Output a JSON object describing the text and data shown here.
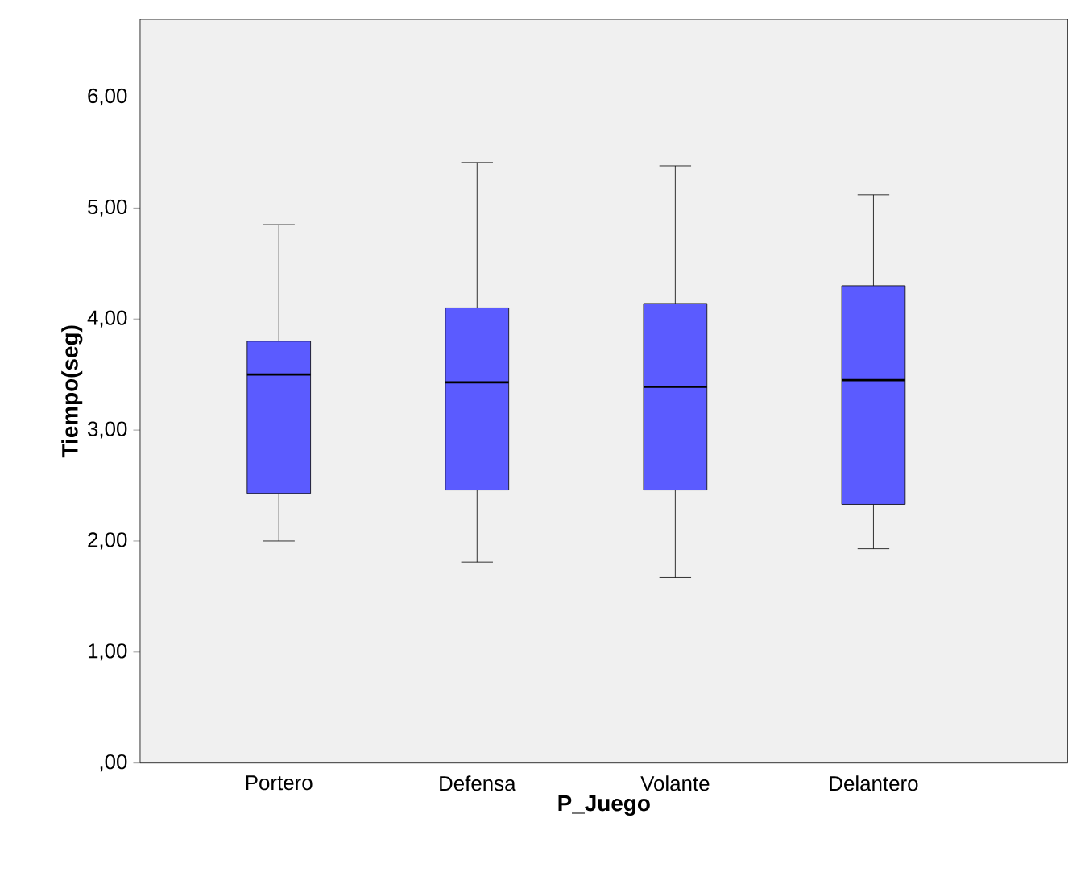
{
  "chart_data": {
    "type": "box",
    "xlabel": "P_Juego",
    "ylabel": "Tiempo(seg)",
    "categories": [
      "Portero",
      "Defensa",
      "Volante",
      "Delantero"
    ],
    "color": "#5b5bff",
    "boxes": [
      {
        "low": 2.0,
        "q1": 2.43,
        "median": 3.5,
        "q3": 3.8,
        "high": 4.85
      },
      {
        "low": 1.81,
        "q1": 2.46,
        "median": 3.43,
        "q3": 4.1,
        "high": 5.41
      },
      {
        "low": 1.67,
        "q1": 2.46,
        "median": 3.39,
        "q3": 4.14,
        "high": 5.38
      },
      {
        "low": 1.93,
        "q1": 2.33,
        "median": 3.45,
        "q3": 4.3,
        "high": 5.12
      }
    ],
    "ylim": [
      0,
      6.7
    ],
    "yticks": [
      {
        "value": 0,
        "label": ",00"
      },
      {
        "value": 1,
        "label": "1,00"
      },
      {
        "value": 2,
        "label": "2,00"
      },
      {
        "value": 3,
        "label": "3,00"
      },
      {
        "value": 4,
        "label": "4,00"
      },
      {
        "value": 5,
        "label": "5,00"
      },
      {
        "value": 6,
        "label": "6,00"
      }
    ]
  }
}
